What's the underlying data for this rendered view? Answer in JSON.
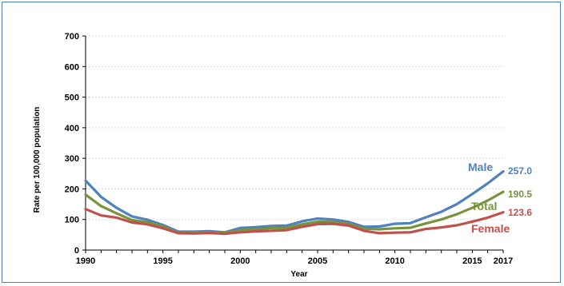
{
  "chart_data": {
    "type": "line",
    "title": "",
    "xlabel": "Year",
    "ylabel": "Rate per 100,000 population",
    "ylim": [
      0,
      700
    ],
    "xlim": [
      1990,
      2017
    ],
    "y_ticks": [
      "0",
      "100",
      "200",
      "300",
      "400",
      "500",
      "600",
      "700"
    ],
    "x_ticks": [
      "1990",
      "1995",
      "2000",
      "2005",
      "2010",
      "2015",
      "2017"
    ],
    "grid": true,
    "legend": "inline series labels at right end of lines",
    "x": [
      1990,
      1991,
      1992,
      1993,
      1994,
      1995,
      1996,
      1997,
      1998,
      1999,
      2000,
      2001,
      2002,
      2003,
      2004,
      2005,
      2006,
      2007,
      2008,
      2009,
      2010,
      2011,
      2012,
      2013,
      2014,
      2015,
      2016,
      2017
    ],
    "series": [
      {
        "name": "Male",
        "color": "#4F81BD",
        "end_value": "257.0",
        "values": [
          227,
          174,
          138,
          110,
          99,
          82,
          60,
          60,
          62,
          58,
          72,
          75,
          79,
          80,
          94,
          103,
          100,
          92,
          76,
          77,
          86,
          88,
          107,
          125,
          150,
          183,
          218,
          257.0
        ]
      },
      {
        "name": "Total",
        "color": "#77933C",
        "end_value": "190.5",
        "values": [
          181,
          144,
          120,
          98,
          91,
          77,
          57,
          57,
          58,
          56,
          65,
          68,
          72,
          73,
          84,
          93,
          92,
          86,
          70,
          68,
          71,
          73,
          87,
          100,
          117,
          138,
          162,
          190.5
        ]
      },
      {
        "name": "Female",
        "color": "#C0504D",
        "end_value": "123.6",
        "values": [
          134,
          113,
          106,
          90,
          84,
          71,
          55,
          54,
          56,
          53,
          58,
          61,
          63,
          65,
          76,
          85,
          86,
          80,
          63,
          55,
          57,
          58,
          69,
          74,
          81,
          93,
          106,
          123.6
        ]
      }
    ]
  }
}
